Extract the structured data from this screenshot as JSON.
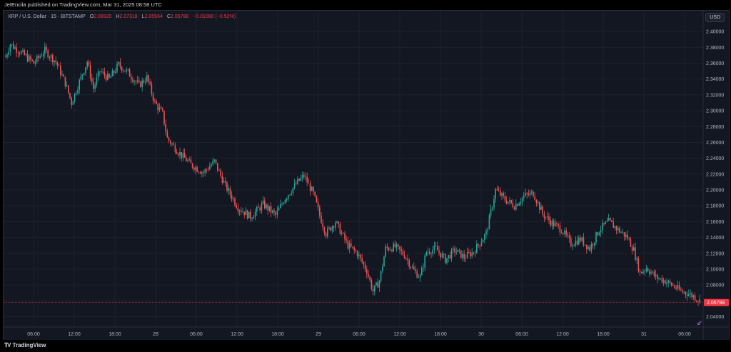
{
  "header": {
    "published": "JetEncila published on TradingView.com, Mar 31, 2025 08:58 UTC"
  },
  "legend": {
    "symbol": "XRP / U.S. Dollar · 15 · BITSTAMP",
    "open_label": "O",
    "open": "2.06920",
    "high_label": "H",
    "high": "2.07318",
    "low_label": "L",
    "low": "2.05564",
    "close_label": "C",
    "close": "2.05788",
    "change": "−0.01080 (−0.52%)"
  },
  "toolbar": {
    "currency": "USD"
  },
  "footer": {
    "brand": "TradingView"
  },
  "colors": {
    "up": "#26a69a",
    "down": "#ef5350",
    "background": "#131722",
    "grid": "#1e222d",
    "last_price_badge": "#f23645"
  },
  "chart_data": {
    "type": "candlestick",
    "x_tick_labels": [
      "06:00",
      "12:00",
      "18:00",
      "28",
      "06:00",
      "12:00",
      "18:00",
      "29",
      "06:00",
      "12:00",
      "18:00",
      "30",
      "06:00",
      "12:00",
      "18:00",
      "31",
      "06:00"
    ],
    "y_tick_labels": [
      "2.40000",
      "2.38000",
      "2.36000",
      "2.34000",
      "2.32000",
      "2.30000",
      "2.28000",
      "2.26000",
      "2.24000",
      "2.22000",
      "2.20000",
      "2.18000",
      "2.16000",
      "2.14000",
      "2.12000",
      "2.10000",
      "2.08000",
      "2.06000",
      "2.04000"
    ],
    "ylim": [
      2.027,
      2.41
    ],
    "last_price": "2.05788",
    "grid": true,
    "path": [
      [
        0,
        2.368
      ],
      [
        3,
        2.384
      ],
      [
        12,
        2.37
      ],
      [
        18,
        2.36
      ],
      [
        25,
        2.376
      ],
      [
        32,
        2.362
      ],
      [
        38,
        2.335
      ],
      [
        42,
        2.31
      ],
      [
        48,
        2.342
      ],
      [
        52,
        2.362
      ],
      [
        56,
        2.328
      ],
      [
        60,
        2.35
      ],
      [
        66,
        2.34
      ],
      [
        72,
        2.358
      ],
      [
        78,
        2.348
      ],
      [
        85,
        2.332
      ],
      [
        90,
        2.342
      ],
      [
        95,
        2.31
      ],
      [
        100,
        2.296
      ],
      [
        103,
        2.265
      ],
      [
        110,
        2.248
      ],
      [
        118,
        2.232
      ],
      [
        126,
        2.222
      ],
      [
        133,
        2.236
      ],
      [
        140,
        2.205
      ],
      [
        148,
        2.178
      ],
      [
        156,
        2.166
      ],
      [
        164,
        2.182
      ],
      [
        172,
        2.168
      ],
      [
        178,
        2.19
      ],
      [
        186,
        2.21
      ],
      [
        190,
        2.218
      ],
      [
        196,
        2.195
      ],
      [
        200,
        2.168
      ],
      [
        204,
        2.145
      ],
      [
        210,
        2.16
      ],
      [
        218,
        2.13
      ],
      [
        224,
        2.12
      ],
      [
        230,
        2.098
      ],
      [
        234,
        2.072
      ],
      [
        238,
        2.085
      ],
      [
        242,
        2.126
      ],
      [
        248,
        2.128
      ],
      [
        254,
        2.118
      ],
      [
        260,
        2.098
      ],
      [
        264,
        2.09
      ],
      [
        268,
        2.122
      ],
      [
        274,
        2.126
      ],
      [
        280,
        2.112
      ],
      [
        286,
        2.124
      ],
      [
        292,
        2.115
      ],
      [
        298,
        2.122
      ],
      [
        306,
        2.145
      ],
      [
        312,
        2.2
      ],
      [
        318,
        2.188
      ],
      [
        324,
        2.18
      ],
      [
        330,
        2.192
      ],
      [
        336,
        2.196
      ],
      [
        342,
        2.17
      ],
      [
        348,
        2.158
      ],
      [
        354,
        2.15
      ],
      [
        360,
        2.132
      ],
      [
        366,
        2.138
      ],
      [
        372,
        2.126
      ],
      [
        378,
        2.15
      ],
      [
        384,
        2.16
      ],
      [
        390,
        2.15
      ],
      [
        396,
        2.14
      ],
      [
        400,
        2.124
      ],
      [
        404,
        2.095
      ],
      [
        408,
        2.102
      ],
      [
        414,
        2.09
      ],
      [
        420,
        2.085
      ],
      [
        426,
        2.078
      ],
      [
        430,
        2.072
      ],
      [
        434,
        2.07
      ],
      [
        438,
        2.066
      ],
      [
        442,
        2.06
      ]
    ]
  }
}
